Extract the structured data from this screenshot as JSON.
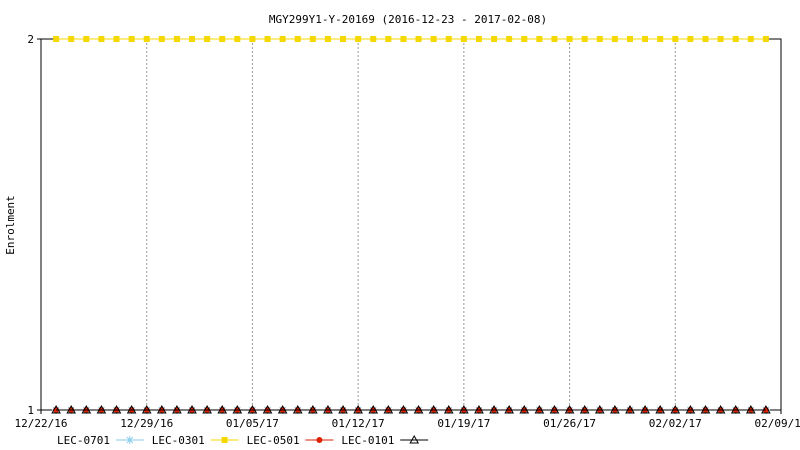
{
  "chart_data": {
    "type": "line",
    "title": "MGY299Y1-Y-20169 (2016-12-23 - 2017-02-08)",
    "xlabel": "",
    "ylabel": "Enrolment",
    "x_tick_labels": [
      "12/22/16",
      "12/29/16",
      "01/05/17",
      "01/12/17",
      "01/19/17",
      "01/26/17",
      "02/02/17",
      "02/09/17"
    ],
    "y_tick_labels": [
      "1",
      "2"
    ],
    "ylim": [
      1,
      2
    ],
    "xlim": [
      "2016-12-22",
      "2017-02-09"
    ],
    "grid": "vertical dashed",
    "legend_position": "bottom",
    "dates": [
      "2016-12-23",
      "2016-12-24",
      "2016-12-25",
      "2016-12-26",
      "2016-12-27",
      "2016-12-28",
      "2016-12-29",
      "2016-12-30",
      "2016-12-31",
      "2017-01-01",
      "2017-01-02",
      "2017-01-03",
      "2017-01-04",
      "2017-01-05",
      "2017-01-06",
      "2017-01-07",
      "2017-01-08",
      "2017-01-09",
      "2017-01-10",
      "2017-01-11",
      "2017-01-12",
      "2017-01-13",
      "2017-01-14",
      "2017-01-15",
      "2017-01-16",
      "2017-01-17",
      "2017-01-18",
      "2017-01-19",
      "2017-01-20",
      "2017-01-21",
      "2017-01-22",
      "2017-01-23",
      "2017-01-24",
      "2017-01-25",
      "2017-01-26",
      "2017-01-27",
      "2017-01-28",
      "2017-01-29",
      "2017-01-30",
      "2017-01-31",
      "2017-02-01",
      "2017-02-02",
      "2017-02-03",
      "2017-02-04",
      "2017-02-05",
      "2017-02-06",
      "2017-02-07",
      "2017-02-08"
    ],
    "series": [
      {
        "name": "LEC-0701",
        "color": "#87ceeb",
        "marker": "asterisk",
        "values": [
          1,
          1,
          1,
          1,
          1,
          1,
          1,
          1,
          1,
          1,
          1,
          1,
          1,
          1,
          1,
          1,
          1,
          1,
          1,
          1,
          1,
          1,
          1,
          1,
          1,
          1,
          1,
          1,
          1,
          1,
          1,
          1,
          1,
          1,
          1,
          1,
          1,
          1,
          1,
          1,
          1,
          1,
          1,
          1,
          1,
          1,
          1,
          1
        ]
      },
      {
        "name": "LEC-0301",
        "color": "#f5d800",
        "marker": "square",
        "values": [
          2,
          2,
          2,
          2,
          2,
          2,
          2,
          2,
          2,
          2,
          2,
          2,
          2,
          2,
          2,
          2,
          2,
          2,
          2,
          2,
          2,
          2,
          2,
          2,
          2,
          2,
          2,
          2,
          2,
          2,
          2,
          2,
          2,
          2,
          2,
          2,
          2,
          2,
          2,
          2,
          2,
          2,
          2,
          2,
          2,
          2,
          2,
          2
        ]
      },
      {
        "name": "LEC-0501",
        "color": "#dd2200",
        "marker": "circle",
        "values": [
          1,
          1,
          1,
          1,
          1,
          1,
          1,
          1,
          1,
          1,
          1,
          1,
          1,
          1,
          1,
          1,
          1,
          1,
          1,
          1,
          1,
          1,
          1,
          1,
          1,
          1,
          1,
          1,
          1,
          1,
          1,
          1,
          1,
          1,
          1,
          1,
          1,
          1,
          1,
          1,
          1,
          1,
          1,
          1,
          1,
          1,
          1,
          1
        ]
      },
      {
        "name": "LEC-0101",
        "color": "#000000",
        "marker": "triangle",
        "values": [
          1,
          1,
          1,
          1,
          1,
          1,
          1,
          1,
          1,
          1,
          1,
          1,
          1,
          1,
          1,
          1,
          1,
          1,
          1,
          1,
          1,
          1,
          1,
          1,
          1,
          1,
          1,
          1,
          1,
          1,
          1,
          1,
          1,
          1,
          1,
          1,
          1,
          1,
          1,
          1,
          1,
          1,
          1,
          1,
          1,
          1,
          1,
          1
        ]
      }
    ]
  }
}
